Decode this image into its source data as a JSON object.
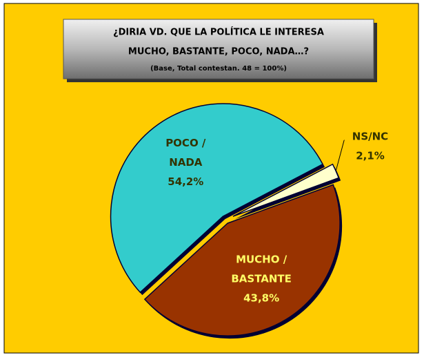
{
  "chart_data": {
    "type": "pie",
    "title": [
      "¿DIRIA VD. QUE LA POLÍTICA LE INTERESA",
      "MUCHO, BASTANTE, POCO, NADA…?"
    ],
    "subtitle": "(Base, Total contestan. 48 = 100%)",
    "categories": [
      [
        "MUCHO /",
        "BASTANTE"
      ],
      [
        "POCO /",
        "NADA"
      ],
      [
        "NS/NC"
      ]
    ],
    "values": [
      43.8,
      54.2,
      2.1
    ],
    "value_labels": [
      "43,8%",
      "54,2%",
      "2,1%"
    ],
    "colors": [
      "#993300",
      "#33CCCC",
      "#FFFFCC"
    ],
    "label_colors": [
      "#FFFF66",
      "#333300",
      "#333300"
    ]
  }
}
